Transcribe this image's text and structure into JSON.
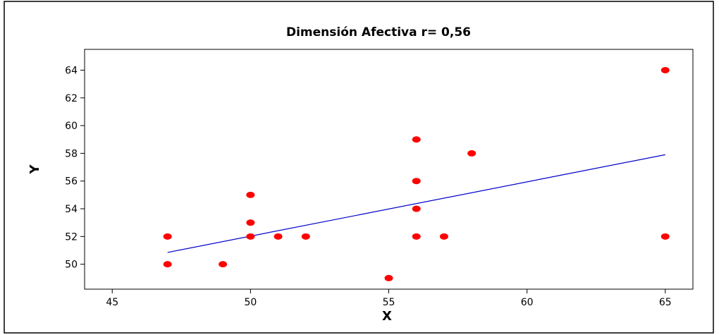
{
  "chart_data": {
    "type": "scatter",
    "title": "Dimensión Afectiva r= 0,56",
    "xlabel": "X",
    "ylabel": "Y",
    "xlim": [
      44,
      66
    ],
    "ylim": [
      48.2,
      65.5
    ],
    "x_ticks": [
      45,
      50,
      55,
      60,
      65
    ],
    "y_ticks": [
      50,
      52,
      54,
      56,
      58,
      60,
      62,
      64
    ],
    "grid": false,
    "series": [
      {
        "points": [
          {
            "x": 47,
            "y": 52
          },
          {
            "x": 47,
            "y": 50
          },
          {
            "x": 49,
            "y": 50
          },
          {
            "x": 50,
            "y": 55
          },
          {
            "x": 50,
            "y": 53
          },
          {
            "x": 50,
            "y": 52
          },
          {
            "x": 51,
            "y": 52
          },
          {
            "x": 52,
            "y": 52
          },
          {
            "x": 55,
            "y": 49
          },
          {
            "x": 56,
            "y": 59
          },
          {
            "x": 56,
            "y": 56
          },
          {
            "x": 56,
            "y": 54
          },
          {
            "x": 56,
            "y": 52
          },
          {
            "x": 57,
            "y": 52
          },
          {
            "x": 58,
            "y": 58
          },
          {
            "x": 65,
            "y": 64
          },
          {
            "x": 65,
            "y": 52
          }
        ]
      }
    ],
    "fit_line": {
      "x": [
        47,
        65
      ],
      "y": [
        50.85,
        57.9
      ]
    },
    "colors": {
      "points": "#ff0000",
      "fit_line": "#0000cc",
      "axes": "#000000"
    }
  }
}
